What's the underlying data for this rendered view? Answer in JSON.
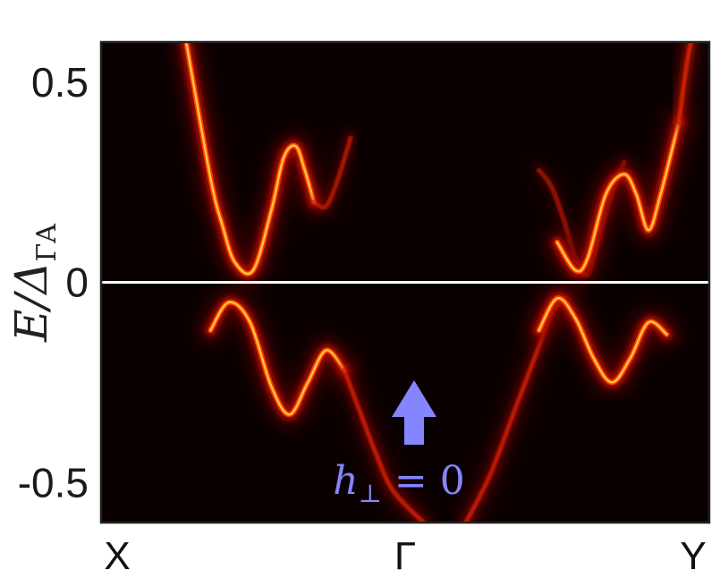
{
  "chart_data": {
    "type": "heatmap",
    "title": "",
    "xlabel": "",
    "ylabel": "E/Δ",
    "ylabel_subscript": "ΓA",
    "x_ticks": [
      "X",
      "Γ",
      "Y"
    ],
    "y_ticks": [
      "0.5",
      "0",
      "-0.5"
    ],
    "y_tick_values": [
      0.5,
      0,
      -0.5
    ],
    "ylim": [
      -0.6,
      0.6
    ],
    "xlim": [
      0,
      1
    ],
    "grid": false,
    "background_color": "#0a0000",
    "colormap": "hot",
    "zero_line_color": "#ffffff",
    "annotation": {
      "text_main": "h",
      "text_sub": "⊥",
      "text_rest": " = 0",
      "icon": "up-arrow-icon",
      "color": "#8585ff"
    },
    "bands": [
      {
        "name": "",
        "x": [
          0.14,
          0.18,
          0.2,
          0.22,
          0.25,
          0.28,
          0.3,
          0.32,
          0.335,
          0.35
        ],
        "y": [
          0.6,
          0.26,
          0.14,
          0.05,
          0.03,
          0.18,
          0.31,
          0.34,
          0.28,
          0.2
        ],
        "intensity": 1.0
      },
      {
        "name": "",
        "x": [
          0.35,
          0.37,
          0.39,
          0.41
        ],
        "y": [
          0.2,
          0.19,
          0.26,
          0.36
        ],
        "intensity": 0.3
      },
      {
        "name": "",
        "x": [
          0.18,
          0.21,
          0.245,
          0.28,
          0.31,
          0.34,
          0.37,
          0.4
        ],
        "y": [
          -0.12,
          -0.05,
          -0.1,
          -0.26,
          -0.33,
          -0.25,
          -0.17,
          -0.22
        ],
        "intensity": 0.95
      },
      {
        "name": "",
        "x": [
          0.4,
          0.42,
          0.45,
          0.48,
          0.53
        ],
        "y": [
          -0.22,
          -0.3,
          -0.42,
          -0.52,
          -0.6
        ],
        "intensity": 0.45
      },
      {
        "name": "",
        "x": [
          0.72,
          0.74,
          0.76,
          0.78,
          0.8,
          0.82,
          0.84,
          0.86
        ],
        "y": [
          0.28,
          0.24,
          0.16,
          0.06,
          0.02,
          0.12,
          0.22,
          0.3
        ],
        "intensity": 0.2
      },
      {
        "name": "",
        "x": [
          0.75,
          0.78,
          0.8,
          0.83,
          0.86,
          0.88,
          0.9,
          0.92,
          0.95
        ],
        "y": [
          0.1,
          0.03,
          0.06,
          0.22,
          0.27,
          0.22,
          0.13,
          0.22,
          0.4
        ],
        "intensity": 1.0
      },
      {
        "name": "",
        "x": [
          0.95,
          0.97,
          1.0
        ],
        "y": [
          0.4,
          0.6,
          0.7
        ],
        "intensity": 0.6
      },
      {
        "name": "",
        "x": [
          0.6,
          0.64,
          0.68,
          0.72,
          0.74,
          0.76
        ],
        "y": [
          -0.6,
          -0.48,
          -0.32,
          -0.16,
          -0.08,
          -0.04
        ],
        "intensity": 0.45
      },
      {
        "name": "",
        "x": [
          0.72,
          0.75,
          0.78,
          0.81,
          0.84,
          0.87,
          0.9,
          0.93
        ],
        "y": [
          -0.12,
          -0.04,
          -0.09,
          -0.19,
          -0.25,
          -0.19,
          -0.1,
          -0.13
        ],
        "intensity": 1.0
      }
    ]
  }
}
